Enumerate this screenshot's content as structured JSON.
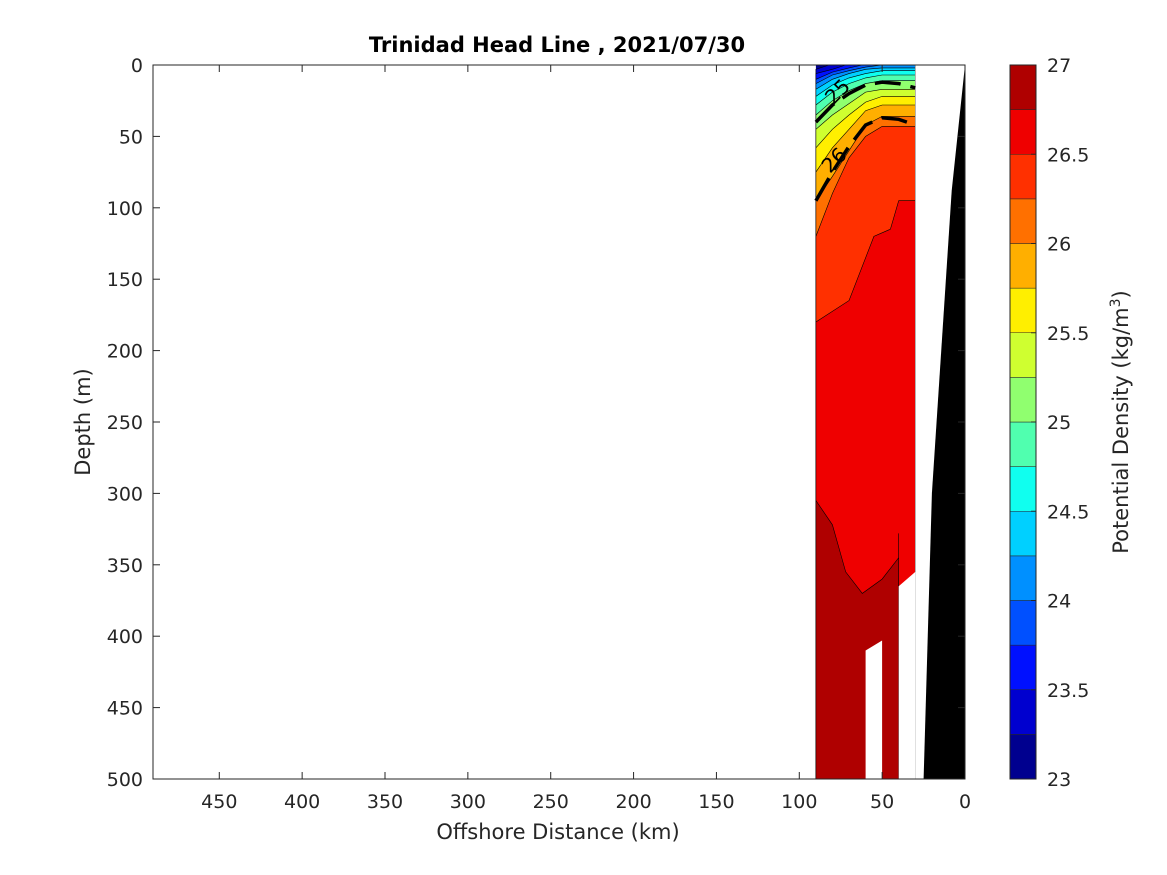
{
  "chart_data": {
    "type": "contourf",
    "title": "Trinidad Head Line , 2021/07/30",
    "xlabel": "Offshore Distance (km)",
    "ylabel": "Depth (m)",
    "xlim": [
      490,
      0
    ],
    "ylim": [
      0,
      500
    ],
    "x_reversed": true,
    "y_reversed": true,
    "xticks": [
      450,
      400,
      350,
      300,
      250,
      200,
      150,
      100,
      50,
      0
    ],
    "yticks": [
      0,
      50,
      100,
      150,
      200,
      250,
      300,
      350,
      400,
      450,
      500
    ],
    "colorbar": {
      "label": "Potential Density (kg/m",
      "label_superscript": "3",
      "label_suffix": ")",
      "range": [
        23,
        27
      ],
      "step": 0.25,
      "ticks": [
        23,
        23.5,
        24,
        24.5,
        25,
        25.5,
        26,
        26.5,
        27
      ],
      "colormap": "jet",
      "colors": [
        "#00008f",
        "#0000cf",
        "#0010ff",
        "#0050ff",
        "#0090ff",
        "#00d0ff",
        "#10ffef",
        "#50ffaf",
        "#90ff6f",
        "#cfff30",
        "#ffef00",
        "#ffaf00",
        "#ff7000",
        "#ff3000",
        "#ef0000",
        "#af0000"
      ]
    },
    "contour_labels": [
      {
        "value": "25",
        "x": 74,
        "y": 22
      },
      {
        "value": "26",
        "x": 76,
        "y": 70
      }
    ],
    "regions": [
      {
        "level": 26.875,
        "color": "#af0000",
        "points": [
          [
            90,
            305
          ],
          [
            80,
            322
          ],
          [
            72,
            355
          ],
          [
            62,
            370
          ],
          [
            50,
            360
          ],
          [
            40,
            345
          ],
          [
            40,
            328
          ],
          [
            40,
            500
          ],
          [
            90,
            500
          ]
        ]
      },
      {
        "level": 26.625,
        "color": "#ef0000",
        "points": [
          [
            90,
            180
          ],
          [
            70,
            165
          ],
          [
            55,
            120
          ],
          [
            45,
            115
          ],
          [
            40,
            95
          ],
          [
            30,
            95
          ],
          [
            30,
            500
          ],
          [
            90,
            500
          ]
        ]
      },
      {
        "level": 26.375,
        "color": "#ff3000",
        "points": [
          [
            90,
            120
          ],
          [
            80,
            90
          ],
          [
            70,
            65
          ],
          [
            60,
            50
          ],
          [
            50,
            43
          ],
          [
            30,
            43
          ],
          [
            30,
            500
          ],
          [
            90,
            500
          ]
        ]
      },
      {
        "level": 26.125,
        "color": "#ff7000",
        "points": [
          [
            90,
            95
          ],
          [
            80,
            78
          ],
          [
            70,
            60
          ],
          [
            60,
            42
          ],
          [
            50,
            36
          ],
          [
            30,
            36
          ],
          [
            30,
            500
          ],
          [
            90,
            500
          ]
        ]
      },
      {
        "level": 25.875,
        "color": "#ffaf00",
        "points": [
          [
            90,
            75
          ],
          [
            80,
            58
          ],
          [
            70,
            45
          ],
          [
            60,
            32
          ],
          [
            50,
            28
          ],
          [
            30,
            28
          ],
          [
            30,
            500
          ],
          [
            90,
            500
          ]
        ]
      },
      {
        "level": 25.625,
        "color": "#ffef00",
        "points": [
          [
            90,
            58
          ],
          [
            80,
            45
          ],
          [
            70,
            35
          ],
          [
            60,
            26
          ],
          [
            50,
            22
          ],
          [
            30,
            22
          ],
          [
            30,
            500
          ],
          [
            90,
            500
          ]
        ]
      },
      {
        "level": 25.375,
        "color": "#cfff30",
        "points": [
          [
            90,
            45
          ],
          [
            80,
            35
          ],
          [
            70,
            27
          ],
          [
            60,
            19
          ],
          [
            50,
            17
          ],
          [
            30,
            17
          ],
          [
            30,
            500
          ],
          [
            90,
            500
          ]
        ]
      },
      {
        "level": 25.125,
        "color": "#90ff6f",
        "points": [
          [
            90,
            35
          ],
          [
            80,
            25
          ],
          [
            70,
            18
          ],
          [
            60,
            13
          ],
          [
            50,
            11
          ],
          [
            30,
            11
          ],
          [
            30,
            500
          ],
          [
            90,
            500
          ]
        ]
      },
      {
        "level": 24.875,
        "color": "#50ffaf",
        "points": [
          [
            90,
            28
          ],
          [
            80,
            19
          ],
          [
            70,
            13
          ],
          [
            60,
            9
          ],
          [
            50,
            7
          ],
          [
            30,
            7
          ],
          [
            30,
            500
          ],
          [
            90,
            500
          ]
        ]
      },
      {
        "level": 24.625,
        "color": "#10ffef",
        "points": [
          [
            90,
            22
          ],
          [
            80,
            14
          ],
          [
            70,
            9
          ],
          [
            60,
            6
          ],
          [
            50,
            4
          ],
          [
            30,
            4
          ],
          [
            30,
            500
          ],
          [
            90,
            500
          ]
        ]
      },
      {
        "level": 24.375,
        "color": "#00d0ff",
        "points": [
          [
            90,
            17
          ],
          [
            80,
            10
          ],
          [
            70,
            6
          ],
          [
            60,
            3
          ],
          [
            50,
            2
          ],
          [
            30,
            2
          ],
          [
            30,
            500
          ],
          [
            90,
            500
          ]
        ]
      },
      {
        "level": 24.125,
        "color": "#0090ff",
        "points": [
          [
            90,
            13
          ],
          [
            80,
            7
          ],
          [
            70,
            4
          ],
          [
            60,
            1.5
          ],
          [
            50,
            0
          ],
          [
            30,
            0
          ],
          [
            30,
            500
          ],
          [
            90,
            500
          ]
        ]
      },
      {
        "level": 23.875,
        "color": "#0050ff",
        "points": [
          [
            90,
            10
          ],
          [
            80,
            5
          ],
          [
            70,
            2
          ],
          [
            62,
            0
          ],
          [
            30,
            0
          ],
          [
            30,
            500
          ],
          [
            90,
            500
          ]
        ]
      },
      {
        "level": 23.625,
        "color": "#0010ff",
        "points": [
          [
            90,
            6
          ],
          [
            80,
            3
          ],
          [
            72,
            0
          ],
          [
            30,
            0
          ],
          [
            30,
            500
          ],
          [
            90,
            500
          ]
        ]
      },
      {
        "level": 23.375,
        "color": "#0000cf",
        "points": [
          [
            90,
            3
          ],
          [
            82,
            0
          ],
          [
            30,
            0
          ],
          [
            30,
            500
          ],
          [
            90,
            500
          ]
        ]
      }
    ],
    "base_layer": {
      "level": 23.125,
      "color": "#00008f",
      "points": [
        [
          90,
          0
        ],
        [
          30,
          0
        ],
        [
          30,
          500
        ],
        [
          90,
          500
        ]
      ]
    },
    "thick_contours": [
      {
        "value": 25,
        "points": [
          [
            90,
            40
          ],
          [
            80,
            28
          ],
          [
            70,
            20
          ],
          [
            60,
            14
          ],
          [
            50,
            12
          ],
          [
            40,
            13
          ],
          [
            30,
            16
          ]
        ]
      },
      {
        "value": 26,
        "points": [
          [
            90,
            95
          ],
          [
            80,
            75
          ],
          [
            70,
            57
          ],
          [
            60,
            42
          ],
          [
            50,
            37
          ],
          [
            40,
            38
          ],
          [
            30,
            42
          ]
        ]
      }
    ],
    "no_data": [
      {
        "points": [
          [
            60,
            410
          ],
          [
            50,
            403
          ],
          [
            50,
            500
          ],
          [
            60,
            500
          ]
        ]
      },
      {
        "points": [
          [
            40,
            365
          ],
          [
            30,
            355
          ],
          [
            30,
            258
          ],
          [
            40,
            258
          ],
          [
            30,
            258
          ],
          [
            30,
            500
          ],
          [
            40,
            500
          ]
        ]
      },
      {
        "points": [
          [
            30,
            0
          ],
          [
            0,
            0
          ],
          [
            0,
            500
          ],
          [
            30,
            500
          ]
        ]
      }
    ],
    "bathymetry": {
      "color": "#000000",
      "points": [
        [
          25,
          500
        ],
        [
          20,
          300
        ],
        [
          8,
          88
        ],
        [
          0,
          0
        ],
        [
          0,
          500
        ]
      ]
    }
  }
}
